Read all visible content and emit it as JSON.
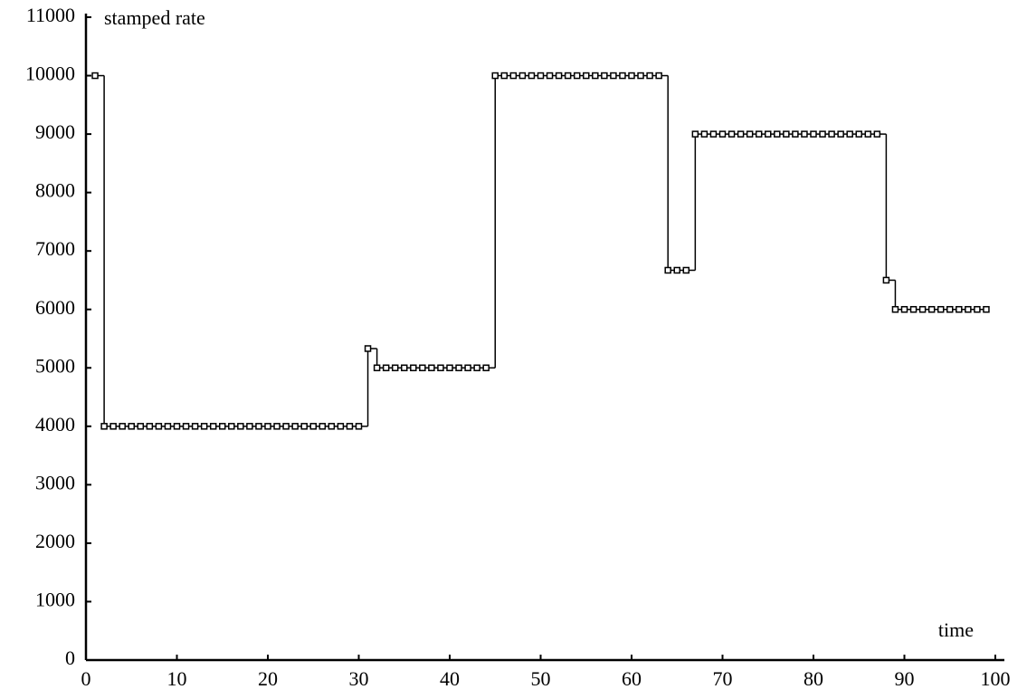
{
  "chart_data": {
    "type": "step",
    "y_label": "stamped rate",
    "x_label": "time",
    "xlim": [
      0,
      100
    ],
    "xticks": [
      0,
      10,
      20,
      30,
      40,
      50,
      60,
      70,
      80,
      90,
      100
    ],
    "ylim": [
      0,
      11000
    ],
    "yticks": [
      0,
      1000,
      2000,
      3000,
      4000,
      5000,
      6000,
      7000,
      8000,
      9000,
      10000,
      11000
    ],
    "color": "#000000",
    "x": [
      1,
      2,
      3,
      4,
      5,
      6,
      7,
      8,
      9,
      10,
      11,
      12,
      13,
      14,
      15,
      16,
      17,
      18,
      19,
      20,
      21,
      22,
      23,
      24,
      25,
      26,
      27,
      28,
      29,
      30,
      31,
      32,
      33,
      34,
      35,
      36,
      37,
      38,
      39,
      40,
      41,
      42,
      43,
      44,
      45,
      46,
      47,
      48,
      49,
      50,
      51,
      52,
      53,
      54,
      55,
      56,
      57,
      58,
      59,
      60,
      61,
      62,
      63,
      64,
      65,
      66,
      67,
      68,
      69,
      70,
      71,
      72,
      73,
      74,
      75,
      76,
      77,
      78,
      79,
      80,
      81,
      82,
      83,
      84,
      85,
      86,
      87,
      88,
      89,
      90,
      91,
      92,
      93,
      94,
      95,
      96,
      97,
      98,
      99
    ],
    "values": [
      10000,
      4000,
      4000,
      4000,
      4000,
      4000,
      4000,
      4000,
      4000,
      4000,
      4000,
      4000,
      4000,
      4000,
      4000,
      4000,
      4000,
      4000,
      4000,
      4000,
      4000,
      4000,
      4000,
      4000,
      4000,
      4000,
      4000,
      4000,
      4000,
      4000,
      5330,
      5000,
      5000,
      5000,
      5000,
      5000,
      5000,
      5000,
      5000,
      5000,
      5000,
      5000,
      5000,
      5000,
      10000,
      10000,
      10000,
      10000,
      10000,
      10000,
      10000,
      10000,
      10000,
      10000,
      10000,
      10000,
      10000,
      10000,
      10000,
      10000,
      10000,
      10000,
      10000,
      6670,
      6670,
      6670,
      9000,
      9000,
      9000,
      9000,
      9000,
      9000,
      9000,
      9000,
      9000,
      9000,
      9000,
      9000,
      9000,
      9000,
      9000,
      9000,
      9000,
      9000,
      9000,
      9000,
      9000,
      6500,
      6000,
      6000,
      6000,
      6000,
      6000,
      6000,
      6000,
      6000,
      6000,
      6000,
      6000
    ]
  }
}
